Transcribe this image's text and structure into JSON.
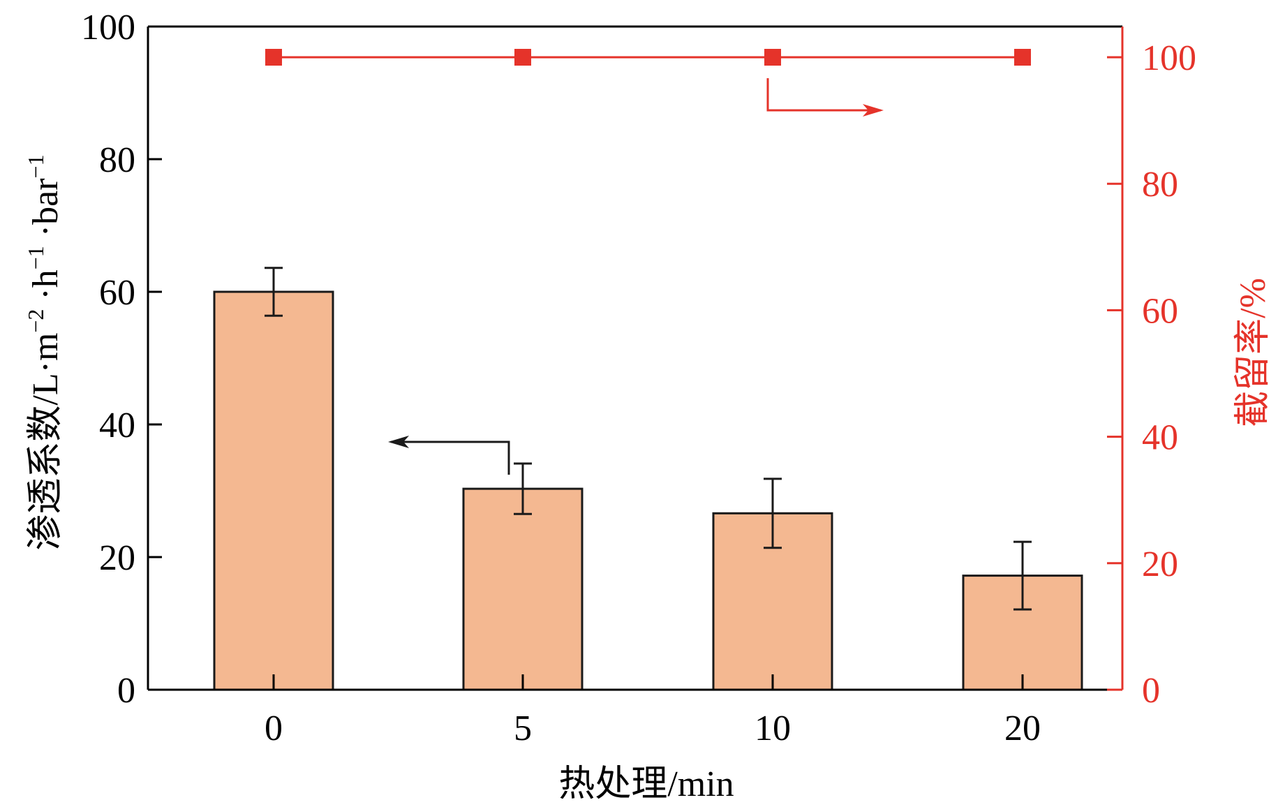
{
  "chart_data": {
    "type": "bar",
    "categories": [
      "0",
      "5",
      "10",
      "20"
    ],
    "xlabel": "热处理/min",
    "series": [
      {
        "axis": "left",
        "type": "bar",
        "values": [
          60,
          30.3,
          26.6,
          17.2
        ],
        "error": [
          3.6,
          3.8,
          5.2,
          5.1
        ],
        "color": "#f4b891"
      },
      {
        "axis": "right",
        "type": "line",
        "values": [
          100,
          100,
          100,
          100
        ],
        "color": "#e5332a"
      }
    ],
    "y_left": {
      "label_parts": [
        "渗透系数/L",
        "·",
        "m",
        "−2",
        " ·",
        "h",
        "−1",
        " ·",
        "bar",
        "−1"
      ],
      "ylim": [
        0,
        100
      ],
      "ticks": [
        "0",
        "20",
        "40",
        "60",
        "80",
        "100"
      ],
      "color": "#000000"
    },
    "y_right": {
      "label": "截留率/%",
      "ylim": [
        0,
        100
      ],
      "ticks": [
        "0",
        "20",
        "40",
        "60",
        "80",
        "100"
      ],
      "color": "#e5332a"
    },
    "arrows": [
      {
        "series": "left",
        "direction": "left"
      },
      {
        "series": "right",
        "direction": "right"
      }
    ]
  }
}
